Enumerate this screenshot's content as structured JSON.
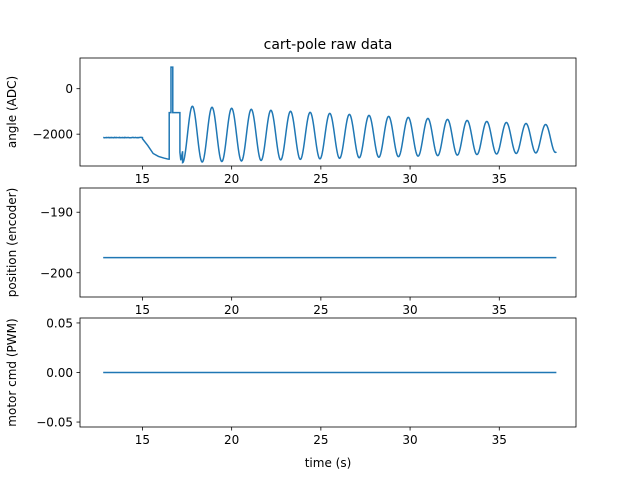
{
  "figure": {
    "title": "cart-pole raw data",
    "line_color": "#1f77b4"
  },
  "chart_data": [
    {
      "type": "line",
      "ylabel": "angle (ADC)",
      "xlim": [
        11.5,
        39.3
      ],
      "ylim": [
        -3400,
        1350
      ],
      "xticks": [
        15,
        20,
        25,
        30,
        35
      ],
      "yticks": [
        0,
        -2000
      ],
      "ytick_labels": [
        "0",
        "−2000"
      ],
      "x_range": [
        12.8,
        38.2
      ],
      "series": [
        {
          "segments": [
            {
              "kind": "flat",
              "x": [
                12.8,
                15.0
              ],
              "y": -2150,
              "noise": 20
            },
            {
              "kind": "points",
              "x": [
                15.0,
                15.3,
                15.6,
                15.9,
                16.2,
                16.45,
                16.5
              ],
              "y": [
                -2200,
                -2500,
                -2850,
                -2980,
                -3050,
                -3100,
                -3100
              ]
            },
            {
              "kind": "points",
              "x": [
                16.5,
                16.5,
                16.6,
                16.6,
                16.7,
                16.7,
                16.8,
                16.8,
                17.1,
                17.1
              ],
              "y": [
                -3100,
                -1050,
                -1050,
                950,
                950,
                -1050,
                -1050,
                -1050,
                -1050,
                -2800
              ]
            },
            {
              "kind": "points",
              "x": [
                17.1,
                17.15,
                17.25
              ],
              "y": [
                -2800,
                -3150,
                -2750
              ]
            },
            {
              "kind": "decaying_sine",
              "x": [
                17.25,
                38.2
              ],
              "period": 1.1,
              "mid_start": -2000,
              "mid_end": -2200,
              "amp_start": 1250,
              "amp_end": 600,
              "phase_start": "trough"
            }
          ]
        }
      ]
    },
    {
      "type": "line",
      "ylabel": "position (encoder)",
      "xlim": [
        11.5,
        39.3
      ],
      "ylim": [
        -204,
        -186
      ],
      "xticks": [
        15,
        20,
        25,
        30,
        35
      ],
      "yticks": [
        -190,
        -200
      ],
      "ytick_labels": [
        "−190",
        "−200"
      ],
      "x_range": [
        12.8,
        38.2
      ],
      "series": [
        {
          "segments": [
            {
              "kind": "flat",
              "x": [
                12.8,
                38.2
              ],
              "y": -197.5,
              "noise": 0
            }
          ]
        }
      ]
    },
    {
      "type": "line",
      "ylabel": "motor cmd (PWM)",
      "xlabel": "time (s)",
      "xlim": [
        11.5,
        39.3
      ],
      "ylim": [
        -0.055,
        0.055
      ],
      "xticks": [
        15,
        20,
        25,
        30,
        35
      ],
      "yticks": [
        0.05,
        0.0,
        -0.05
      ],
      "ytick_labels": [
        "0.05",
        "0.00",
        "−0.05"
      ],
      "x_range": [
        12.8,
        38.2
      ],
      "series": [
        {
          "segments": [
            {
              "kind": "flat",
              "x": [
                12.8,
                38.2
              ],
              "y": 0.0,
              "noise": 0
            }
          ]
        }
      ]
    }
  ]
}
